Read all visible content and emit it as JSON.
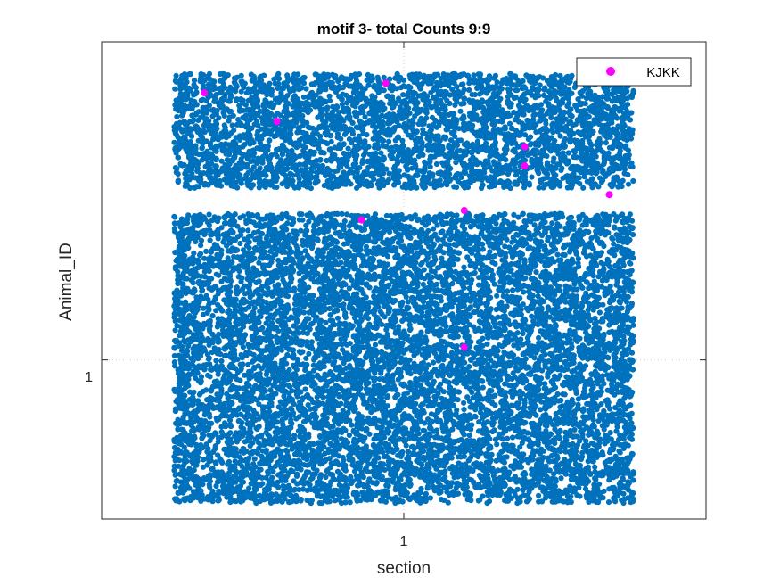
{
  "chart_data": {
    "type": "scatter",
    "title": "motif 3- total Counts 9:9",
    "xlabel": "section",
    "ylabel": "Animal_ID",
    "x_ticks": [
      "1"
    ],
    "y_ticks": [
      "1"
    ],
    "xlim": [
      0.5,
      1.5
    ],
    "ylim": [
      0.5,
      2.0
    ],
    "grid": true,
    "legend_position": "top-right",
    "series": [
      {
        "name": "",
        "color": "#0072BD",
        "groups": [
          {
            "x_range": [
              0.62,
              1.38
            ],
            "y_range": [
              1.9,
              1.54
            ]
          },
          {
            "x_range": [
              0.62,
              1.38
            ],
            "y_range": [
              1.46,
              1.05
            ]
          },
          {
            "x_range": [
              0.62,
              1.38
            ],
            "y_range": [
              1.05,
              0.55
            ]
          }
        ]
      },
      {
        "name": "KJKK",
        "color": "#FF00FF",
        "points": [
          {
            "x": 0.67,
            "y": 1.84
          },
          {
            "x": 0.79,
            "y": 1.75
          },
          {
            "x": 0.97,
            "y": 1.87
          },
          {
            "x": 1.2,
            "y": 1.67
          },
          {
            "x": 1.2,
            "y": 1.61
          },
          {
            "x": 1.34,
            "y": 1.52
          },
          {
            "x": 0.93,
            "y": 1.44
          },
          {
            "x": 1.1,
            "y": 1.47
          },
          {
            "x": 1.1,
            "y": 1.04
          }
        ]
      }
    ]
  }
}
